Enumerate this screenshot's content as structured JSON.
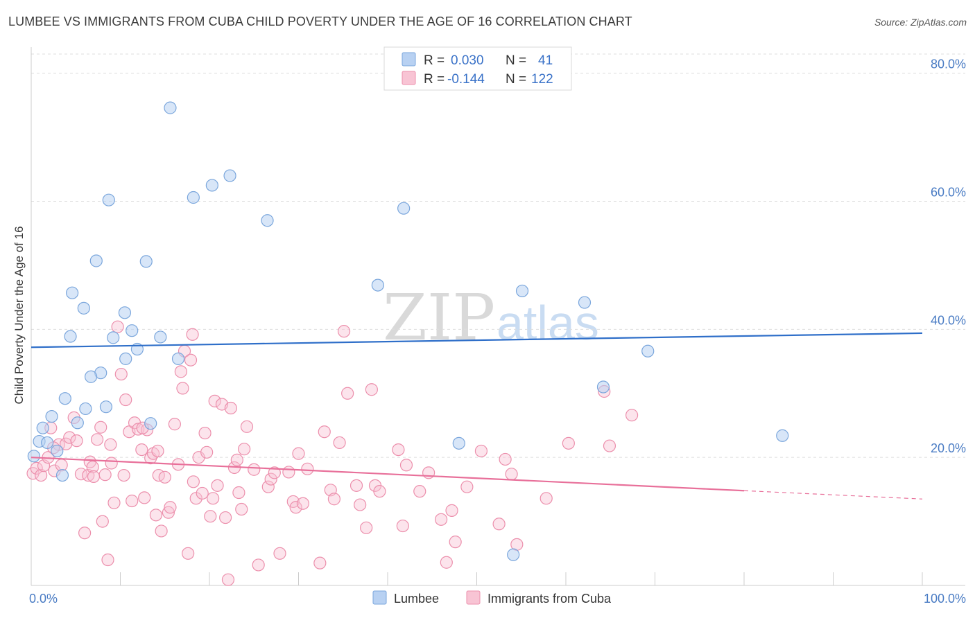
{
  "title": "LUMBEE VS IMMIGRANTS FROM CUBA CHILD POVERTY UNDER THE AGE OF 16 CORRELATION CHART",
  "source": "Source: ZipAtlas.com",
  "watermark": {
    "zip": "ZIP",
    "atlas": "atlas"
  },
  "legend": {
    "rows": [
      {
        "r_label": "R =",
        "r_value": "0.030",
        "n_label": "N =",
        "n_value": "41"
      },
      {
        "r_label": "R =",
        "r_value": "-0.144",
        "n_label": "N =",
        "n_value": "122"
      }
    ]
  },
  "bottom_legend": {
    "lumbee": "Lumbee",
    "cuba": "Immigrants from Cuba"
  },
  "colors": {
    "lumbee_fill": "#b8d1f2",
    "lumbee_stroke": "#7aa6dc",
    "lumbee_line": "#2f6fc9",
    "cuba_fill": "#f8c4d4",
    "cuba_stroke": "#ec8fac",
    "cuba_line": "#e8709a",
    "grid": "#dddddd",
    "tick_text": "#4a7cc4"
  },
  "chart_data": {
    "type": "scatter",
    "title": "LUMBEE VS IMMIGRANTS FROM CUBA CHILD POVERTY UNDER THE AGE OF 16 CORRELATION CHART",
    "xlabel": "",
    "ylabel": "Child Poverty Under the Age of 16",
    "xlim": [
      0,
      100
    ],
    "ylim": [
      0,
      83
    ],
    "x_tick_labels": [
      "0.0%",
      "100.0%"
    ],
    "y_ticks": [
      20,
      40,
      60,
      80
    ],
    "y_tick_labels": [
      "20.0%",
      "40.0%",
      "60.0%",
      "80.0%"
    ],
    "grid": true,
    "legend_position": "top-center",
    "series": [
      {
        "name": "Lumbee",
        "r": 0.03,
        "n": 41,
        "trend": {
          "x": [
            0,
            100
          ],
          "y": [
            37.2,
            39.4
          ]
        },
        "points": [
          [
            15.6,
            74.6
          ],
          [
            22.3,
            64.0
          ],
          [
            20.3,
            62.5
          ],
          [
            18.2,
            60.6
          ],
          [
            8.7,
            60.2
          ],
          [
            26.5,
            57.0
          ],
          [
            41.8,
            58.9
          ],
          [
            7.3,
            50.7
          ],
          [
            12.9,
            50.6
          ],
          [
            38.9,
            46.9
          ],
          [
            4.6,
            45.7
          ],
          [
            5.9,
            43.3
          ],
          [
            10.5,
            42.6
          ],
          [
            55.1,
            46.0
          ],
          [
            62.1,
            44.2
          ],
          [
            4.4,
            38.9
          ],
          [
            9.2,
            38.7
          ],
          [
            11.3,
            39.8
          ],
          [
            14.5,
            38.8
          ],
          [
            11.9,
            36.9
          ],
          [
            10.6,
            35.4
          ],
          [
            16.5,
            35.4
          ],
          [
            69.2,
            36.6
          ],
          [
            7.8,
            33.2
          ],
          [
            6.7,
            32.6
          ],
          [
            3.8,
            29.2
          ],
          [
            64.2,
            31.0
          ],
          [
            6.1,
            27.6
          ],
          [
            8.4,
            27.9
          ],
          [
            2.3,
            26.4
          ],
          [
            1.3,
            24.6
          ],
          [
            5.2,
            25.4
          ],
          [
            13.4,
            25.3
          ],
          [
            0.9,
            22.5
          ],
          [
            1.8,
            22.3
          ],
          [
            2.9,
            21.0
          ],
          [
            0.3,
            20.2
          ],
          [
            48.0,
            22.2
          ],
          [
            84.3,
            23.4
          ],
          [
            3.5,
            17.2
          ],
          [
            54.1,
            4.8
          ]
        ]
      },
      {
        "name": "Immigrants from Cuba",
        "r": -0.144,
        "n": 122,
        "trend": {
          "x": [
            0,
            80
          ],
          "y": [
            20.0,
            14.8
          ]
        },
        "trend_dashed": {
          "x": [
            80,
            100
          ],
          "y": [
            14.8,
            13.5
          ]
        },
        "points": [
          [
            0.2,
            17.5
          ],
          [
            0.6,
            18.3
          ],
          [
            1.1,
            17.2
          ],
          [
            1.4,
            18.7
          ],
          [
            1.9,
            20.0
          ],
          [
            2.2,
            24.6
          ],
          [
            2.6,
            17.9
          ],
          [
            3.1,
            22.0
          ],
          [
            3.4,
            18.8
          ],
          [
            3.9,
            22.1
          ],
          [
            4.3,
            23.1
          ],
          [
            4.8,
            26.2
          ],
          [
            5.1,
            22.6
          ],
          [
            5.6,
            17.4
          ],
          [
            6.0,
            8.2
          ],
          [
            6.4,
            17.2
          ],
          [
            6.6,
            19.3
          ],
          [
            6.9,
            18.5
          ],
          [
            7.4,
            22.8
          ],
          [
            7.8,
            24.7
          ],
          [
            8.0,
            10.0
          ],
          [
            8.3,
            17.3
          ],
          [
            8.6,
            4.0
          ],
          [
            8.9,
            22.0
          ],
          [
            9.3,
            12.9
          ],
          [
            9.7,
            40.4
          ],
          [
            10.1,
            33.0
          ],
          [
            10.4,
            17.2
          ],
          [
            10.6,
            29.0
          ],
          [
            11.0,
            24.0
          ],
          [
            11.3,
            13.2
          ],
          [
            11.6,
            25.4
          ],
          [
            12.0,
            24.4
          ],
          [
            12.4,
            21.2
          ],
          [
            12.7,
            13.7
          ],
          [
            13.0,
            24.3
          ],
          [
            13.4,
            19.9
          ],
          [
            13.7,
            20.6
          ],
          [
            14.0,
            11.0
          ],
          [
            14.3,
            17.2
          ],
          [
            14.6,
            8.5
          ],
          [
            15.0,
            16.9
          ],
          [
            15.4,
            11.4
          ],
          [
            15.6,
            12.2
          ],
          [
            16.1,
            25.2
          ],
          [
            16.5,
            18.9
          ],
          [
            16.8,
            33.4
          ],
          [
            17.0,
            30.8
          ],
          [
            17.2,
            36.6
          ],
          [
            17.6,
            5.0
          ],
          [
            17.9,
            35.2
          ],
          [
            18.1,
            39.2
          ],
          [
            18.5,
            13.6
          ],
          [
            18.8,
            20.0
          ],
          [
            19.2,
            14.4
          ],
          [
            19.5,
            23.8
          ],
          [
            19.7,
            20.8
          ],
          [
            20.1,
            10.8
          ],
          [
            20.4,
            13.6
          ],
          [
            20.6,
            28.8
          ],
          [
            20.9,
            15.6
          ],
          [
            21.4,
            28.3
          ],
          [
            21.8,
            10.6
          ],
          [
            22.1,
            0.9
          ],
          [
            22.4,
            27.7
          ],
          [
            22.8,
            18.4
          ],
          [
            23.1,
            19.6
          ],
          [
            23.3,
            14.5
          ],
          [
            23.6,
            11.9
          ],
          [
            23.9,
            21.3
          ],
          [
            24.2,
            24.8
          ],
          [
            25.0,
            18.1
          ],
          [
            25.5,
            3.2
          ],
          [
            26.6,
            15.4
          ],
          [
            26.9,
            16.6
          ],
          [
            27.3,
            17.6
          ],
          [
            27.9,
            5.0
          ],
          [
            28.9,
            17.7
          ],
          [
            29.4,
            13.1
          ],
          [
            29.7,
            12.2
          ],
          [
            30.0,
            20.6
          ],
          [
            30.5,
            12.8
          ],
          [
            31.0,
            18.2
          ],
          [
            32.4,
            3.5
          ],
          [
            32.9,
            24.0
          ],
          [
            33.6,
            14.9
          ],
          [
            34.0,
            13.5
          ],
          [
            34.6,
            22.3
          ],
          [
            35.1,
            39.7
          ],
          [
            35.5,
            30.0
          ],
          [
            36.5,
            15.6
          ],
          [
            36.9,
            12.6
          ],
          [
            37.6,
            9.0
          ],
          [
            38.2,
            30.6
          ],
          [
            38.6,
            15.6
          ],
          [
            39.1,
            14.7
          ],
          [
            41.2,
            21.2
          ],
          [
            41.7,
            9.3
          ],
          [
            42.1,
            18.8
          ],
          [
            43.6,
            14.7
          ],
          [
            44.6,
            17.6
          ],
          [
            46.0,
            10.3
          ],
          [
            46.6,
            3.6
          ],
          [
            47.2,
            11.7
          ],
          [
            47.6,
            6.8
          ],
          [
            48.9,
            15.4
          ],
          [
            50.5,
            21.0
          ],
          [
            52.5,
            9.6
          ],
          [
            53.2,
            19.7
          ],
          [
            53.9,
            17.4
          ],
          [
            54.5,
            6.4
          ],
          [
            57.8,
            13.6
          ],
          [
            60.3,
            22.2
          ],
          [
            64.3,
            30.3
          ],
          [
            64.9,
            21.8
          ],
          [
            67.4,
            26.6
          ],
          [
            14.2,
            21.0
          ],
          [
            2.5,
            21.5
          ],
          [
            7.0,
            17.0
          ],
          [
            18.2,
            16.2
          ],
          [
            9.0,
            19.1
          ],
          [
            12.5,
            24.6
          ]
        ]
      }
    ]
  }
}
